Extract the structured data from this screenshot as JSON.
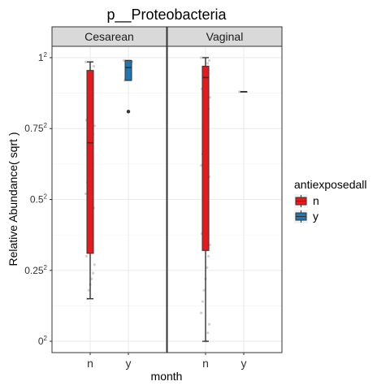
{
  "chart_data": {
    "type": "boxplot",
    "title": "p__Proteobacteria",
    "xlabel": "month",
    "ylabel": "Relative Abundance( sqrt )",
    "ylim": [
      -0.04,
      1.04
    ],
    "y_ticks": [
      0,
      0.25,
      0.5,
      0.75,
      1
    ],
    "y_tick_bases": [
      "0",
      "0.25",
      "0.5",
      "0.75",
      "1"
    ],
    "y_tick_exponent": "2",
    "grid": true,
    "categories": [
      "n",
      "y"
    ],
    "legend": {
      "title": "antiexposedall",
      "placement": "right",
      "entries": [
        {
          "label": "n",
          "color": "#E41A1C"
        },
        {
          "label": "y",
          "color": "#1F78B4"
        }
      ]
    },
    "panels": [
      {
        "name": "Cesarean",
        "boxes": [
          {
            "category": "n",
            "fill": "#E41A1C",
            "min": 0.15,
            "q1": 0.31,
            "median": 0.7,
            "q3": 0.955,
            "max": 0.985,
            "points": [
              0.985,
              0.97,
              0.93,
              0.9,
              0.86,
              0.82,
              0.78,
              0.76,
              0.73,
              0.68,
              0.64,
              0.6,
              0.56,
              0.52,
              0.47,
              0.43,
              0.4,
              0.36,
              0.33,
              0.3,
              0.27,
              0.24,
              0.22,
              0.2,
              0.18,
              0.15
            ]
          },
          {
            "category": "y",
            "fill": "#1F78B4",
            "min": 0.92,
            "q1": 0.92,
            "median": 0.965,
            "q3": 0.99,
            "max": 0.99,
            "outliers": [
              0.81
            ],
            "points": [
              0.99,
              0.985,
              0.975,
              0.965,
              0.95,
              0.93,
              0.92
            ]
          }
        ]
      },
      {
        "name": "Vaginal",
        "boxes": [
          {
            "category": "n",
            "fill": "#E41A1C",
            "min": 0.0,
            "q1": 0.32,
            "median": 0.93,
            "q3": 0.97,
            "max": 1.0,
            "points": [
              1.0,
              0.99,
              0.98,
              0.96,
              0.94,
              0.92,
              0.89,
              0.86,
              0.82,
              0.78,
              0.74,
              0.7,
              0.66,
              0.62,
              0.58,
              0.54,
              0.5,
              0.46,
              0.42,
              0.38,
              0.34,
              0.3,
              0.26,
              0.22,
              0.18,
              0.14,
              0.1,
              0.06,
              0.03,
              0.0
            ]
          },
          {
            "category": "y",
            "fill": "#1F78B4",
            "min": 0.88,
            "q1": 0.88,
            "median": 0.88,
            "q3": 0.88,
            "max": 0.88,
            "points": [
              0.88
            ]
          }
        ]
      }
    ]
  }
}
